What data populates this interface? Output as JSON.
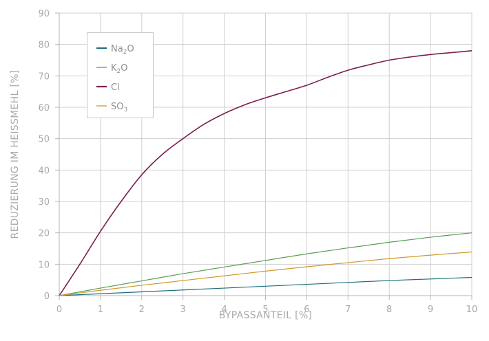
{
  "chart_data": {
    "type": "line",
    "title": "",
    "xlabel": "BYPASSANTEIL [%]",
    "ylabel": "REDUZIERUNG IM HEISSMEHL [%]",
    "xlim": [
      0,
      10
    ],
    "ylim": [
      0,
      90
    ],
    "x_ticks": [
      0,
      1,
      2,
      3,
      4,
      5,
      6,
      7,
      8,
      9,
      10
    ],
    "y_ticks": [
      0,
      10,
      20,
      30,
      40,
      50,
      60,
      70,
      80,
      90
    ],
    "grid": true,
    "legend_position": "top-left",
    "series": [
      {
        "name": "Na2O",
        "legend_parts": [
          {
            "t": "Na"
          },
          {
            "t": "2",
            "sub": true
          },
          {
            "t": "O"
          }
        ],
        "color": "#1f6e7e",
        "x": [
          0,
          1,
          2,
          3,
          4,
          5,
          6,
          7,
          8,
          9,
          10
        ],
        "y": [
          0,
          0.6,
          1.2,
          1.8,
          2.4,
          3.0,
          3.6,
          4.2,
          4.8,
          5.3,
          5.8
        ]
      },
      {
        "name": "K2O",
        "legend_parts": [
          {
            "t": "K"
          },
          {
            "t": "2",
            "sub": true
          },
          {
            "t": "O"
          }
        ],
        "color": "#5a9e55",
        "x": [
          0,
          1,
          2,
          3,
          4,
          5,
          6,
          7,
          8,
          9,
          10
        ],
        "y": [
          0,
          2.4,
          4.7,
          7.0,
          9.1,
          11.2,
          13.3,
          15.2,
          17.0,
          18.6,
          20.0
        ]
      },
      {
        "name": "Cl",
        "legend_parts": [
          {
            "t": "Cl"
          }
        ],
        "color": "#7a1e50",
        "x": [
          0,
          0.5,
          1,
          1.5,
          2,
          2.5,
          3,
          3.5,
          4,
          4.5,
          5,
          5.5,
          6,
          6.5,
          7,
          7.5,
          8,
          8.5,
          9,
          9.5,
          10
        ],
        "y": [
          0,
          10,
          20.5,
          30,
          38.5,
          45,
          50,
          54.5,
          58,
          60.8,
          63,
          65,
          67,
          69.5,
          71.8,
          73.5,
          75,
          76,
          76.8,
          77.4,
          78
        ]
      },
      {
        "name": "SO3",
        "legend_parts": [
          {
            "t": "SO"
          },
          {
            "t": "3",
            "sub": true
          }
        ],
        "color": "#d4962a",
        "x": [
          0,
          1,
          2,
          3,
          4,
          5,
          6,
          7,
          8,
          9,
          10
        ],
        "y": [
          0,
          1.7,
          3.3,
          4.8,
          6.3,
          7.8,
          9.2,
          10.5,
          11.8,
          12.9,
          13.9
        ]
      }
    ]
  }
}
